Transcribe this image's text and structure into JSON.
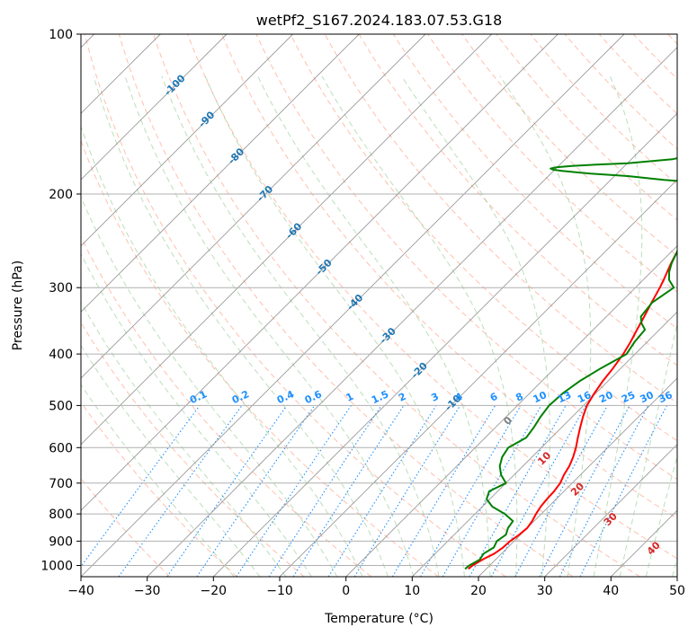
{
  "chart_data": {
    "type": "line",
    "title": "wetPf2_S167.2024.183.07.53.G18",
    "xlabel": "Temperature (°C)",
    "ylabel": "Pressure (hPa)",
    "xlim": [
      -40,
      50
    ],
    "ylim": [
      1050,
      100
    ],
    "y_scale": "log",
    "x_ticks": [
      -40,
      -30,
      -20,
      -10,
      0,
      10,
      20,
      30,
      40,
      50
    ],
    "y_ticks": [
      100,
      200,
      300,
      400,
      500,
      600,
      700,
      800,
      900,
      1000
    ],
    "grid": true,
    "colors": {
      "temperature": "#ff0000",
      "dewpoint": "#008000",
      "isotherms": "#808080",
      "dry_adiabats": "#ff8c69",
      "moist_adiabats": "#90c890",
      "mixing_ratio": "#1e90ff",
      "isotherm_labels": "#1f77b4",
      "mixing_ratio_labels": "#1e90ff",
      "moist_labels": "#d62728"
    },
    "isotherm_labels": [
      {
        "t": -100,
        "p": 125
      },
      {
        "t": -90,
        "p": 145
      },
      {
        "t": -80,
        "p": 170
      },
      {
        "t": -70,
        "p": 200
      },
      {
        "t": -60,
        "p": 235
      },
      {
        "t": -50,
        "p": 275
      },
      {
        "t": -40,
        "p": 320
      },
      {
        "t": -30,
        "p": 370
      },
      {
        "t": -20,
        "p": 430
      },
      {
        "t": -10,
        "p": 495
      }
    ],
    "mixing_ratio_labels": [
      "0.1",
      "0.2",
      "0.4",
      "0.6",
      "1",
      "1.5",
      "2",
      "3",
      "4",
      "6",
      "8",
      "10",
      "13",
      "16",
      "20",
      "25",
      "30",
      "36"
    ],
    "mixing_ratio_values": [
      0.1,
      0.2,
      0.4,
      0.6,
      1,
      1.5,
      2,
      3,
      4,
      6,
      8,
      10,
      13,
      16,
      20,
      25,
      30,
      36
    ],
    "moist_adiabat_labels": [
      {
        "label": "0",
        "t": 24.5,
        "p": 535
      },
      {
        "label": "10",
        "t": 30,
        "p": 630
      },
      {
        "label": "20",
        "t": 35,
        "p": 720
      },
      {
        "label": "30",
        "t": 40,
        "p": 820
      },
      {
        "label": "40",
        "t": 46.5,
        "p": 930
      }
    ],
    "series": [
      {
        "name": "",
        "p": [
          1015,
          1000,
          975,
          950,
          925,
          900,
          875,
          850,
          825,
          800,
          775,
          750,
          725,
          700,
          675,
          650,
          625,
          600,
          575,
          550,
          525,
          500,
          475,
          450,
          425,
          400,
          380,
          360,
          340,
          320,
          300,
          290,
          280,
          270,
          260,
          250,
          240,
          230,
          220,
          210,
          200,
          195,
          190,
          185,
          180,
          175,
          170,
          165,
          160,
          150,
          140,
          130,
          120,
          110,
          100
        ],
        "t": [
          17.3,
          17.4,
          18,
          18.9,
          19.3,
          19.4,
          19.8,
          20,
          19.7,
          19.2,
          18.8,
          18.6,
          18.5,
          18.2,
          17.5,
          17,
          16.2,
          15.2,
          14,
          12.8,
          11.6,
          10.5,
          9.8,
          9.2,
          8.8,
          8.2,
          7.5,
          6.6,
          5.7,
          4.7,
          3.7,
          3.1,
          2.4,
          1.7,
          1.1,
          0.6,
          0.3,
          0.5,
          1,
          1.8,
          3,
          4.2,
          5.5,
          7.5,
          9.8,
          10.6,
          10.3,
          9.8,
          10.3,
          11.5,
          12.5,
          14,
          16,
          18.5,
          22
        ]
      },
      {
        "name": "",
        "p": [
          1015,
          1000,
          975,
          950,
          925,
          900,
          875,
          850,
          825,
          800,
          775,
          750,
          725,
          700,
          675,
          650,
          625,
          600,
          575,
          550,
          525,
          500,
          475,
          450,
          425,
          400,
          380,
          360,
          350,
          340,
          320,
          300,
          290,
          280,
          270,
          260,
          250,
          240,
          230,
          220,
          210,
          200,
          195,
          190,
          188,
          185,
          183,
          181,
          180,
          179,
          178,
          177,
          176,
          175,
          172,
          168,
          164,
          160,
          155,
          150,
          146,
          142,
          138,
          134,
          130,
          125,
          120,
          110,
          100
        ],
        "t": [
          16.8,
          16.9,
          17.6,
          17.3,
          17.9,
          17.4,
          17.8,
          17.1,
          16.8,
          14.5,
          11.5,
          9.5,
          8.7,
          10.0,
          8.0,
          6.5,
          5.5,
          5.0,
          6.2,
          5.8,
          5.2,
          4.8,
          5.0,
          5.7,
          7.0,
          8.7,
          8.1,
          7.8,
          6.3,
          5.2,
          4.8,
          5.8,
          3.9,
          2.7,
          1.8,
          1.1,
          0.4,
          0.3,
          0.1,
          0.5,
          0.7,
          -0.2,
          -2.5,
          -7.0,
          -12.0,
          -18.0,
          -24.0,
          -28.5,
          -30.2,
          -30.8,
          -30.0,
          -28.0,
          -24.5,
          -20.0,
          -13.8,
          -11.0,
          -9.3,
          -7.6,
          -6.6,
          -6.9,
          -7.6,
          -8.1,
          -7.2,
          -6.5,
          -6.1,
          -5.0,
          -4.0,
          -2.5,
          -1.2
        ]
      }
    ]
  }
}
